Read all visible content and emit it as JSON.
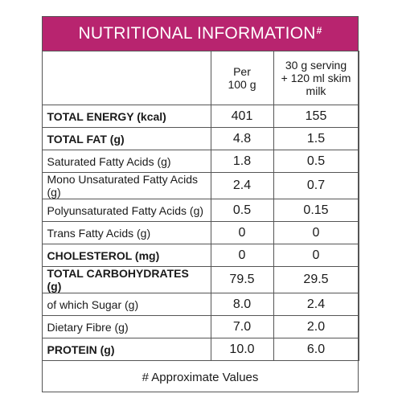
{
  "header": {
    "title": "NUTRITIONAL INFORMATION",
    "superscript": "#"
  },
  "table": {
    "column_headers": [
      "Per 100 g",
      "30 g serving + 120 ml skim milk"
    ],
    "rows": [
      {
        "label": "TOTAL ENERGY (kcal)",
        "bold": true,
        "values": [
          "401",
          "155"
        ]
      },
      {
        "label": "TOTAL FAT (g)",
        "bold": true,
        "values": [
          "4.8",
          "1.5"
        ]
      },
      {
        "label": "Saturated Fatty Acids (g)",
        "bold": false,
        "values": [
          "1.8",
          "0.5"
        ]
      },
      {
        "label": "Mono Unsaturated Fatty Acids (g)",
        "bold": false,
        "values": [
          "2.4",
          "0.7"
        ]
      },
      {
        "label": "Polyunsaturated Fatty Acids (g)",
        "bold": false,
        "values": [
          "0.5",
          "0.15"
        ]
      },
      {
        "label": "Trans Fatty Acids (g)",
        "bold": false,
        "values": [
          "0",
          "0"
        ]
      },
      {
        "label": "CHOLESTEROL (mg)",
        "bold": true,
        "values": [
          "0",
          "0"
        ]
      },
      {
        "label": "TOTAL CARBOHYDRATES (g)",
        "bold": true,
        "values": [
          "79.5",
          "29.5"
        ]
      },
      {
        "label": "of which Sugar (g)",
        "bold": false,
        "values": [
          "8.0",
          "2.4"
        ]
      },
      {
        "label": "Dietary Fibre (g)",
        "bold": false,
        "values": [
          "7.0",
          "2.0"
        ]
      },
      {
        "label": "PROTEIN (g)",
        "bold": true,
        "values": [
          "10.0",
          "6.0"
        ]
      }
    ]
  },
  "footer": {
    "note": "# Approximate Values"
  }
}
